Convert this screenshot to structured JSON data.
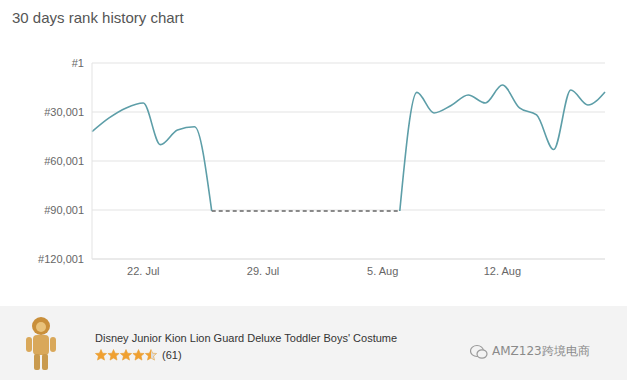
{
  "chart_data": {
    "type": "line",
    "title": "30 days rank history chart",
    "categories": [
      null,
      null,
      null,
      "22. Jul",
      null,
      null,
      null,
      null,
      null,
      null,
      "29. Jul",
      null,
      null,
      null,
      null,
      null,
      null,
      "5. Aug",
      null,
      null,
      null,
      null,
      null,
      null,
      "12. Aug",
      null,
      null,
      null,
      null,
      null,
      null
    ],
    "series": [
      {
        "color": "#5d9ea8",
        "line_style": "solid",
        "values": [
          42000,
          33600,
          27500,
          24500,
          50000,
          41000,
          39000,
          90600,
          null,
          null,
          null,
          null,
          null,
          null,
          null,
          null,
          null,
          null,
          90600,
          18000,
          30600,
          26000,
          19600,
          24500,
          13500,
          27500,
          31800,
          53000,
          16500,
          25700,
          17700
        ]
      },
      {
        "color": "#666666",
        "line_style": "dashed",
        "values": [
          null,
          null,
          null,
          null,
          null,
          null,
          null,
          90600,
          90600,
          90600,
          90600,
          90600,
          90600,
          90600,
          90600,
          90600,
          90600,
          90600,
          90600,
          null,
          null,
          null,
          null,
          null,
          null,
          null,
          null,
          null,
          null,
          null,
          null
        ]
      }
    ],
    "ylim": [
      1,
      120001
    ],
    "yticks": [
      {
        "value": 1,
        "label": "#1"
      },
      {
        "value": 30001,
        "label": "#30,001"
      },
      {
        "value": 60001,
        "label": "#60,001"
      },
      {
        "value": 90001,
        "label": "#90,001"
      },
      {
        "value": 120001,
        "label": "#120,001"
      }
    ],
    "grid": true
  },
  "product": {
    "name": "Disney Junior Kion Lion Guard Deluxe Toddler Boys' Costume",
    "rating": 4.5,
    "reviews_label": "(61)"
  },
  "watermark": "AMZ123跨境电商"
}
